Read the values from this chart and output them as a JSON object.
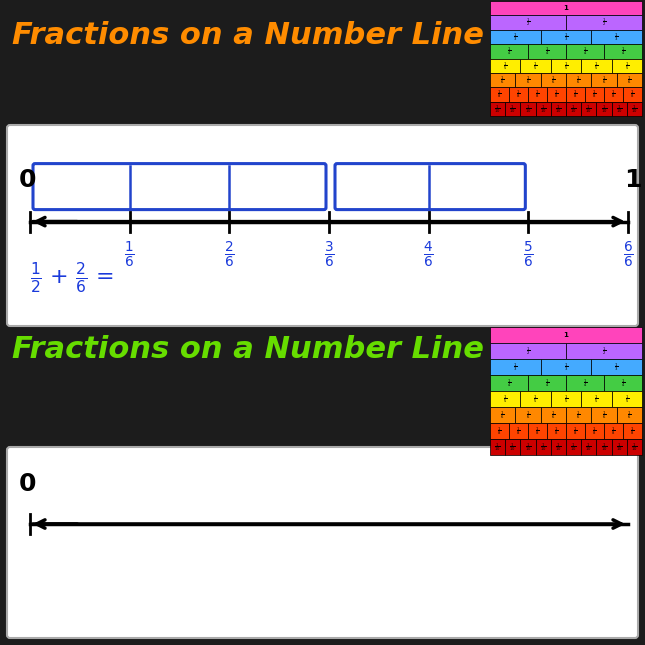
{
  "bg_color": "#1c1c1c",
  "panel1_title": "Fractions on a Number Line",
  "panel1_title_color": "#ff8c00",
  "panel2_title": "Fractions on a Number Line",
  "panel2_title_color": "#66dd00",
  "label_color": "#1a3adb",
  "fraction_chart_rows": [
    {
      "color": "#ff44bb",
      "n": 1
    },
    {
      "color": "#bb66ff",
      "n": 2
    },
    {
      "color": "#44aaff",
      "n": 3
    },
    {
      "color": "#44cc44",
      "n": 4
    },
    {
      "color": "#ffee00",
      "n": 5
    },
    {
      "color": "#ff8800",
      "n": 6
    },
    {
      "color": "#ff4400",
      "n": 8
    },
    {
      "color": "#cc0000",
      "n": 10
    }
  ]
}
